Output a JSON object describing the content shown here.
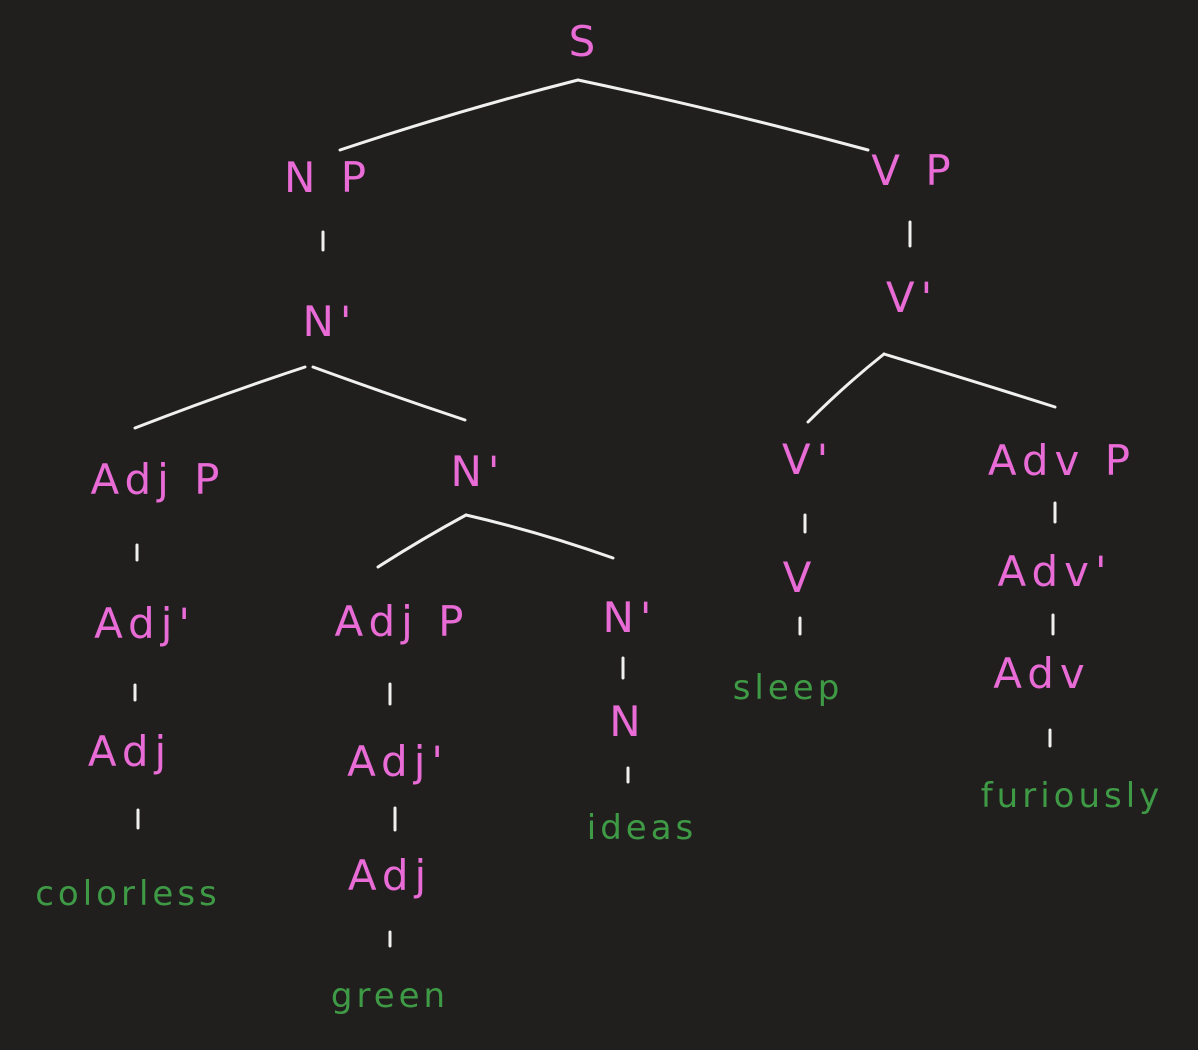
{
  "colors": {
    "background": "#201f1e",
    "node_label": "#e86bd6",
    "word_label": "#3f9a46",
    "branch": "#f0f0f0"
  },
  "tree": {
    "s": "S",
    "np": "N P",
    "vp": "V P",
    "np_nbar": "N'",
    "adjp1": "Adj P",
    "nbar2": "N'",
    "adjbar1": "Adj'",
    "adj1": "Adj",
    "adjp2": "Adj P",
    "nbar3": "N'",
    "adjbar2": "Adj'",
    "adj2": "Adj",
    "n": "N",
    "vbar1": "V'",
    "vbar2": "V'",
    "v": "V",
    "advp": "Adv P",
    "advbar": "Adv'",
    "adv": "Adv"
  },
  "words": {
    "colorless": "colorless",
    "green": "green",
    "ideas": "ideas",
    "sleep": "sleep",
    "furiously": "furiously"
  }
}
